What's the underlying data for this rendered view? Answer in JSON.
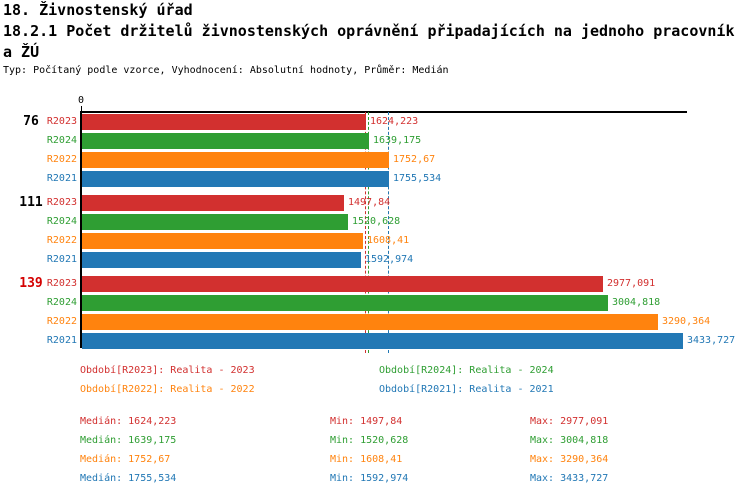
{
  "header": {
    "title_line1": "18. Živnostenský úřad",
    "title_line2": "18.2.1 Počet držitelů živnostenských oprávnění připadajících na jednoho pracovník",
    "title_line3": "a ŽÚ",
    "meta_line": "Typ: Počítaný podle vzorce, Vyhodnocení: Absolutní hodnoty, Průměr: Medián"
  },
  "chart_data": {
    "type": "bar",
    "orientation": "horizontal",
    "title": "18.2.1 Počet držitelů živnostenských oprávnění připadajících na jednoho pracovníka ŽÚ",
    "xlabel": "",
    "ylabel": "",
    "x_axis": {
      "origin_label": "0",
      "min": 0,
      "max": 3466,
      "gridlines": false
    },
    "series_meta": [
      {
        "id": "R2023",
        "label": "R2023",
        "name": "Realita - 2023",
        "color": "#d2302f"
      },
      {
        "id": "R2024",
        "label": "R2024",
        "name": "Realita - 2024",
        "color": "#2f9e33"
      },
      {
        "id": "R2022",
        "label": "R2022",
        "name": "Realita - 2022",
        "color": "#ff830e"
      },
      {
        "id": "R2021",
        "label": "R2021",
        "name": "Realita - 2021",
        "color": "#2278b5"
      }
    ],
    "groups": [
      {
        "label": "76",
        "label_color": "#000000",
        "bars": [
          {
            "series": "R2023",
            "value": 1624.223,
            "display": "1624,223"
          },
          {
            "series": "R2024",
            "value": 1639.175,
            "display": "1639,175"
          },
          {
            "series": "R2022",
            "value": 1752.67,
            "display": "1752,67"
          },
          {
            "series": "R2021",
            "value": 1755.534,
            "display": "1755,534"
          }
        ]
      },
      {
        "label": "111",
        "label_color": "#000000",
        "bars": [
          {
            "series": "R2023",
            "value": 1497.84,
            "display": "1497,84"
          },
          {
            "series": "R2024",
            "value": 1520.628,
            "display": "1520,628"
          },
          {
            "series": "R2022",
            "value": 1608.41,
            "display": "1608,41"
          },
          {
            "series": "R2021",
            "value": 1592.974,
            "display": "1592,974"
          }
        ]
      },
      {
        "label": "139",
        "label_color": "#d40000",
        "bars": [
          {
            "series": "R2023",
            "value": 2977.091,
            "display": "2977,091"
          },
          {
            "series": "R2024",
            "value": 3004.818,
            "display": "3004,818"
          },
          {
            "series": "R2022",
            "value": 3290.364,
            "display": "3290,364"
          },
          {
            "series": "R2021",
            "value": 3433.727,
            "display": "3433,727"
          }
        ]
      }
    ],
    "median_lines": [
      {
        "series": "R2023",
        "value": 1624.223,
        "color": "#d2302f"
      },
      {
        "series": "R2024",
        "value": 1639.175,
        "color": "#2f9e33"
      },
      {
        "series": "R2022",
        "value": 1752.67,
        "color": "#ff830e"
      },
      {
        "series": "R2021",
        "value": 1755.534,
        "color": "#2278b5"
      }
    ]
  },
  "legend": {
    "items": [
      {
        "text": "Období[R2023]: Realita - 2023",
        "color": "#d2302f",
        "row": 0,
        "col": 0
      },
      {
        "text": "Období[R2024]: Realita - 2024",
        "color": "#2f9e33",
        "row": 0,
        "col": 1
      },
      {
        "text": "Období[R2022]: Realita - 2022",
        "color": "#ff830e",
        "row": 1,
        "col": 0
      },
      {
        "text": "Období[R2021]: Realita - 2021",
        "color": "#2278b5",
        "row": 1,
        "col": 1
      }
    ]
  },
  "stats": {
    "rows": [
      {
        "color": "#d2302f",
        "median": "Medián: 1624,223",
        "min": "Min: 1497,84",
        "max": "Max: 2977,091"
      },
      {
        "color": "#2f9e33",
        "median": "Medián: 1639,175",
        "min": "Min: 1520,628",
        "max": "Max: 3004,818"
      },
      {
        "color": "#ff830e",
        "median": "Medián: 1752,67",
        "min": "Min: 1608,41",
        "max": "Max: 3290,364"
      },
      {
        "color": "#2278b5",
        "median": "Medián: 1755,534",
        "min": "Min: 1592,974",
        "max": "Max: 3433,727"
      }
    ]
  }
}
